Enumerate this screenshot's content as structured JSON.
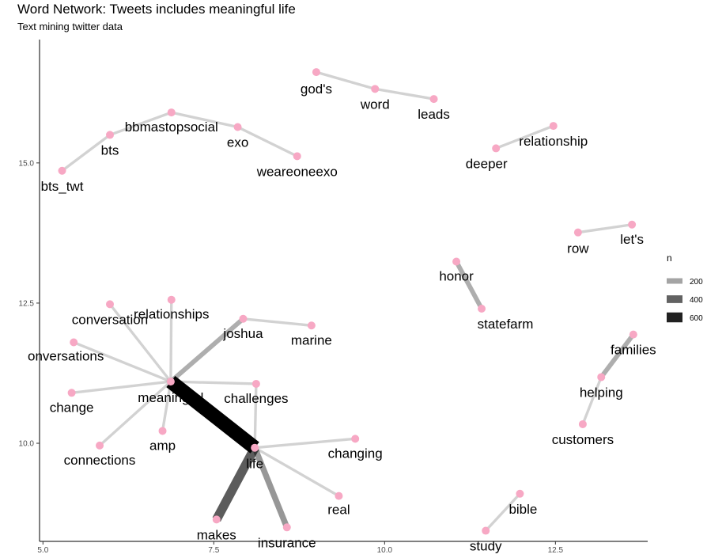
{
  "title": "Word Network: Tweets includes meaningful life",
  "subtitle": "Text mining twitter data",
  "chart_data": {
    "type": "network",
    "xlim": [
      4.95,
      13.85
    ],
    "ylim": [
      8.25,
      17.2
    ],
    "x_ticks": [
      5.0,
      7.5,
      10.0,
      12.5
    ],
    "y_ticks": [
      10.0,
      12.5,
      15.0
    ],
    "x_tick_labels": [
      "5.0",
      "7.5",
      "10.0",
      "12.5"
    ],
    "y_tick_labels": [
      "10.0",
      "12.5",
      "15.0"
    ],
    "grid": false,
    "legend": {
      "title": "n",
      "position": "right",
      "entries": [
        {
          "label": "200",
          "value": 200
        },
        {
          "label": "400",
          "value": 400
        },
        {
          "label": "600",
          "value": 600
        }
      ]
    },
    "colors": {
      "node": "#f7a8c4",
      "edge": "#000000"
    },
    "nodes": [
      {
        "id": "god's",
        "x": 9.0,
        "y": 16.62
      },
      {
        "id": "word",
        "x": 9.86,
        "y": 16.32
      },
      {
        "id": "leads",
        "x": 10.72,
        "y": 16.14
      },
      {
        "id": "bbmastopsocial",
        "x": 6.88,
        "y": 15.9
      },
      {
        "id": "exo",
        "x": 7.85,
        "y": 15.64
      },
      {
        "id": "bts",
        "x": 5.98,
        "y": 15.5
      },
      {
        "id": "weareoneexo",
        "x": 8.72,
        "y": 15.12
      },
      {
        "id": "bts_twt",
        "x": 5.28,
        "y": 14.86
      },
      {
        "id": "relationship",
        "x": 12.47,
        "y": 15.66
      },
      {
        "id": "deeper",
        "x": 11.63,
        "y": 15.26
      },
      {
        "id": "let's",
        "x": 13.62,
        "y": 13.9
      },
      {
        "id": "row",
        "x": 12.83,
        "y": 13.76
      },
      {
        "id": "honor",
        "x": 11.05,
        "y": 13.24
      },
      {
        "id": "statefarm",
        "x": 11.42,
        "y": 12.4
      },
      {
        "id": "relationships",
        "x": 6.88,
        "y": 12.56
      },
      {
        "id": "conversation",
        "x": 5.98,
        "y": 12.48
      },
      {
        "id": "joshua",
        "x": 7.93,
        "y": 12.22
      },
      {
        "id": "marine",
        "x": 8.93,
        "y": 12.1
      },
      {
        "id": "onversations",
        "x": 5.45,
        "y": 11.8
      },
      {
        "id": "meaningful",
        "x": 6.87,
        "y": 11.1
      },
      {
        "id": "challenges",
        "x": 8.12,
        "y": 11.06
      },
      {
        "id": "change",
        "x": 5.42,
        "y": 10.9
      },
      {
        "id": "amp",
        "x": 6.75,
        "y": 10.22
      },
      {
        "id": "connections",
        "x": 5.83,
        "y": 9.96
      },
      {
        "id": "life",
        "x": 8.1,
        "y": 9.92
      },
      {
        "id": "changing",
        "x": 9.57,
        "y": 10.08
      },
      {
        "id": "real",
        "x": 9.33,
        "y": 9.06
      },
      {
        "id": "makes",
        "x": 7.54,
        "y": 8.64
      },
      {
        "id": "insurance",
        "x": 8.57,
        "y": 8.5
      },
      {
        "id": "families",
        "x": 13.64,
        "y": 11.94
      },
      {
        "id": "helping",
        "x": 13.17,
        "y": 11.18
      },
      {
        "id": "customers",
        "x": 12.9,
        "y": 10.34
      },
      {
        "id": "bible",
        "x": 11.98,
        "y": 9.1
      },
      {
        "id": "study",
        "x": 11.48,
        "y": 8.44
      }
    ],
    "edges": [
      {
        "from": "god's",
        "to": "word",
        "n": 60
      },
      {
        "from": "word",
        "to": "leads",
        "n": 60
      },
      {
        "from": "bts",
        "to": "bbmastopsocial",
        "n": 60
      },
      {
        "from": "bbmastopsocial",
        "to": "exo",
        "n": 60
      },
      {
        "from": "exo",
        "to": "weareoneexo",
        "n": 60
      },
      {
        "from": "bts_twt",
        "to": "bts",
        "n": 60
      },
      {
        "from": "deeper",
        "to": "relationship",
        "n": 60
      },
      {
        "from": "row",
        "to": "let's",
        "n": 60
      },
      {
        "from": "honor",
        "to": "statefarm",
        "n": 170
      },
      {
        "from": "meaningful",
        "to": "life",
        "n": 700
      },
      {
        "from": "meaningful",
        "to": "joshua",
        "n": 170
      },
      {
        "from": "meaningful",
        "to": "relationships",
        "n": 60
      },
      {
        "from": "meaningful",
        "to": "conversation",
        "n": 60
      },
      {
        "from": "meaningful",
        "to": "onversations",
        "n": 60
      },
      {
        "from": "meaningful",
        "to": "change",
        "n": 60
      },
      {
        "from": "meaningful",
        "to": "amp",
        "n": 60
      },
      {
        "from": "meaningful",
        "to": "connections",
        "n": 60
      },
      {
        "from": "meaningful",
        "to": "challenges",
        "n": 60
      },
      {
        "from": "joshua",
        "to": "marine",
        "n": 60
      },
      {
        "from": "life",
        "to": "challenges",
        "n": 60
      },
      {
        "from": "life",
        "to": "changing",
        "n": 60
      },
      {
        "from": "life",
        "to": "real",
        "n": 60
      },
      {
        "from": "life",
        "to": "makes",
        "n": 420
      },
      {
        "from": "life",
        "to": "insurance",
        "n": 240
      },
      {
        "from": "helping",
        "to": "families",
        "n": 170
      },
      {
        "from": "customers",
        "to": "helping",
        "n": 60
      },
      {
        "from": "study",
        "to": "bible",
        "n": 60
      }
    ]
  }
}
